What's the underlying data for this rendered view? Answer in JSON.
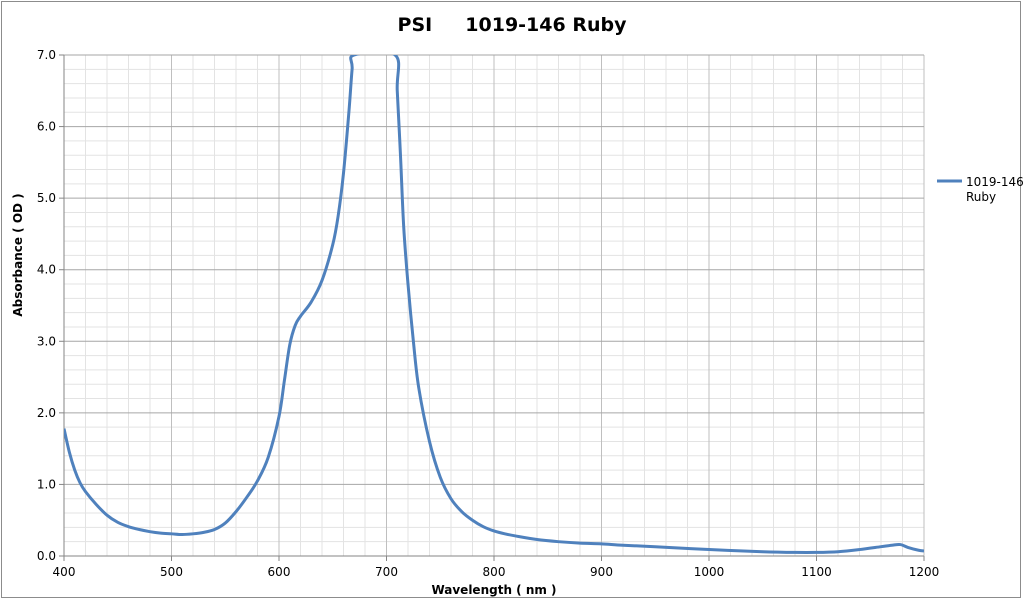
{
  "chart_data": {
    "type": "line",
    "title": "PSI     1019-146 Ruby",
    "xlabel": "Wavelength  ( nm )",
    "ylabel": "Absorbance  ( OD )",
    "xlim": [
      400,
      1200
    ],
    "ylim": [
      0,
      7
    ],
    "x_ticks": [
      "400",
      "500",
      "600",
      "700",
      "800",
      "900",
      "1000",
      "1100",
      "1200"
    ],
    "y_ticks": [
      "0.0",
      "1.0",
      "2.0",
      "3.0",
      "4.0",
      "5.0",
      "6.0",
      "7.0"
    ],
    "grid": true,
    "legend_position": "right",
    "series": [
      {
        "name": "1019-146 Ruby",
        "color": "#4f81bd",
        "points": [
          [
            400,
            1.78
          ],
          [
            405,
            1.45
          ],
          [
            410,
            1.2
          ],
          [
            415,
            1.02
          ],
          [
            420,
            0.9
          ],
          [
            430,
            0.72
          ],
          [
            440,
            0.57
          ],
          [
            450,
            0.47
          ],
          [
            460,
            0.41
          ],
          [
            470,
            0.37
          ],
          [
            480,
            0.34
          ],
          [
            490,
            0.32
          ],
          [
            500,
            0.31
          ],
          [
            510,
            0.3
          ],
          [
            520,
            0.31
          ],
          [
            530,
            0.33
          ],
          [
            540,
            0.37
          ],
          [
            550,
            0.46
          ],
          [
            560,
            0.62
          ],
          [
            570,
            0.82
          ],
          [
            580,
            1.05
          ],
          [
            590,
            1.38
          ],
          [
            600,
            1.95
          ],
          [
            605,
            2.45
          ],
          [
            610,
            2.95
          ],
          [
            615,
            3.22
          ],
          [
            620,
            3.35
          ],
          [
            630,
            3.55
          ],
          [
            640,
            3.85
          ],
          [
            650,
            4.35
          ],
          [
            655,
            4.75
          ],
          [
            660,
            5.35
          ],
          [
            665,
            6.2
          ],
          [
            668,
            6.8
          ],
          [
            670,
            7.0
          ],
          [
            708,
            7.0
          ],
          [
            710,
            6.5
          ],
          [
            713,
            5.6
          ],
          [
            716,
            4.6
          ],
          [
            720,
            3.8
          ],
          [
            725,
            3.0
          ],
          [
            730,
            2.35
          ],
          [
            740,
            1.6
          ],
          [
            750,
            1.1
          ],
          [
            760,
            0.8
          ],
          [
            770,
            0.62
          ],
          [
            780,
            0.5
          ],
          [
            790,
            0.41
          ],
          [
            800,
            0.35
          ],
          [
            810,
            0.31
          ],
          [
            820,
            0.28
          ],
          [
            840,
            0.23
          ],
          [
            860,
            0.2
          ],
          [
            880,
            0.18
          ],
          [
            900,
            0.17
          ],
          [
            920,
            0.15
          ],
          [
            950,
            0.13
          ],
          [
            1000,
            0.09
          ],
          [
            1050,
            0.06
          ],
          [
            1080,
            0.05
          ],
          [
            1100,
            0.05
          ],
          [
            1120,
            0.06
          ],
          [
            1140,
            0.09
          ],
          [
            1160,
            0.13
          ],
          [
            1170,
            0.15
          ],
          [
            1178,
            0.16
          ],
          [
            1185,
            0.12
          ],
          [
            1195,
            0.08
          ],
          [
            1200,
            0.07
          ]
        ]
      }
    ]
  }
}
